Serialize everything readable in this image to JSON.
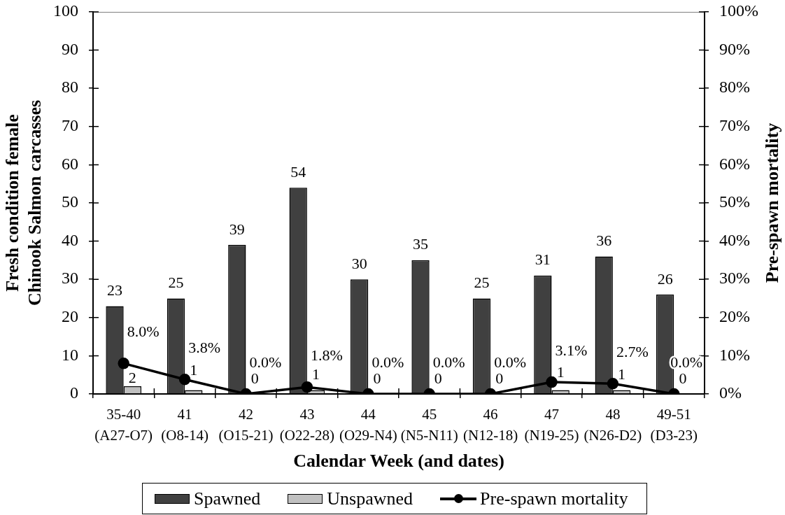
{
  "chart_data": {
    "type": "bar",
    "categories": [
      "35-40\n(A27-O7)",
      "41\n(O8-14)",
      "42\n(O15-21)",
      "43\n(O22-28)",
      "44\n(O29-N4)",
      "45\n(N5-N11)",
      "46\n(N12-18)",
      "47\n(N19-25)",
      "48\n(N26-D2)",
      "49-51\n(D3-23)"
    ],
    "xlabel": "Calendar Week (and dates)",
    "ylabel": "Fresh condition female\nChinook Salmon carcasses",
    "y2label": "Pre-spawn mortality",
    "series": [
      {
        "name": "Spawned",
        "color": "#404040",
        "values": [
          23,
          25,
          39,
          54,
          30,
          35,
          25,
          31,
          36,
          26
        ],
        "value_labels": [
          "23",
          "25",
          "39",
          "54",
          "30",
          "35",
          "25",
          "31",
          "36",
          "26"
        ]
      },
      {
        "name": "Unspawned",
        "color": "#c0c0c0",
        "values": [
          2,
          1,
          0,
          1,
          0,
          0,
          0,
          1,
          1,
          0
        ],
        "value_labels": [
          "2",
          "1",
          "0",
          "1",
          "0",
          "0",
          "0",
          "1",
          "1",
          "0"
        ]
      },
      {
        "name": "Pre-spawn mortality",
        "type": "line",
        "axis": "y2",
        "color": "#000000",
        "values": [
          8.0,
          3.8,
          0.0,
          1.8,
          0.0,
          0.0,
          0.0,
          3.1,
          2.7,
          0.0
        ],
        "value_labels": [
          "8.0%",
          "3.8%",
          "0.0%",
          "1.8%",
          "0.0%",
          "0.0%",
          "0.0%",
          "3.1%",
          "2.7%",
          "0.0%"
        ]
      }
    ],
    "ylim": [
      0,
      100
    ],
    "yticks": [
      0,
      10,
      20,
      30,
      40,
      50,
      60,
      70,
      80,
      90,
      100
    ],
    "y2lim": [
      0,
      100
    ],
    "y2ticks": [
      {
        "value": 0,
        "label": "0%"
      },
      {
        "value": 10,
        "label": "10%"
      },
      {
        "value": 20,
        "label": "20%"
      },
      {
        "value": 30,
        "label": "30%"
      },
      {
        "value": 40,
        "label": "40%"
      },
      {
        "value": 50,
        "label": "50%"
      },
      {
        "value": 60,
        "label": "60%"
      },
      {
        "value": 70,
        "label": "70%"
      },
      {
        "value": 80,
        "label": "80%"
      },
      {
        "value": 90,
        "label": "90%"
      },
      {
        "value": 100,
        "label": "100%"
      }
    ],
    "grid": false,
    "legend": "bottom",
    "marker": "circle"
  }
}
